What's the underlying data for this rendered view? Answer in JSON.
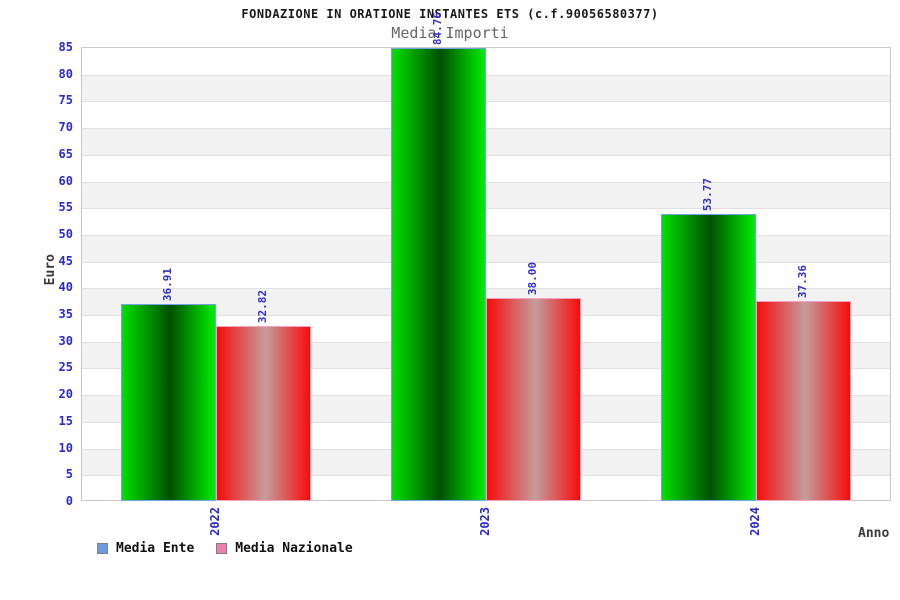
{
  "title": "FONDAZIONE IN ORATIONE INSTANTES ETS (c.f.90056580377)",
  "subtitle": "Media Importi",
  "axes": {
    "y_label": "Euro",
    "x_label": "Anno"
  },
  "legend": [
    {
      "label": "Media Ente",
      "swatch_color": "#6c9cdf"
    },
    {
      "label": "Media Nazionale",
      "swatch_color": "#ed80b0"
    }
  ],
  "chart_data": {
    "type": "bar",
    "title": "Media Importi",
    "xlabel": "Anno",
    "ylabel": "Euro",
    "categories": [
      "2022",
      "2023",
      "2024"
    ],
    "series": [
      {
        "name": "Media Ente",
        "values": [
          36.91,
          84.76,
          53.77
        ],
        "gradient": [
          "#00df00",
          "#005000",
          "#00ee00"
        ],
        "border_color": "#79a1e8"
      },
      {
        "name": "Media Nazionale",
        "values": [
          32.82,
          38.0,
          37.36
        ],
        "gradient": [
          "#f70c0c",
          "#c59c9c",
          "#f70c0c"
        ],
        "border_color": "#f2a2c2"
      }
    ],
    "ylim": [
      0,
      85
    ],
    "ytick_step": 5,
    "grid": true,
    "band_fill": "#f2f2f2",
    "value_labels": true,
    "value_label_color": "#3030c8",
    "tick_label_color": "#2929cc",
    "legend_position": "bottom-left"
  }
}
